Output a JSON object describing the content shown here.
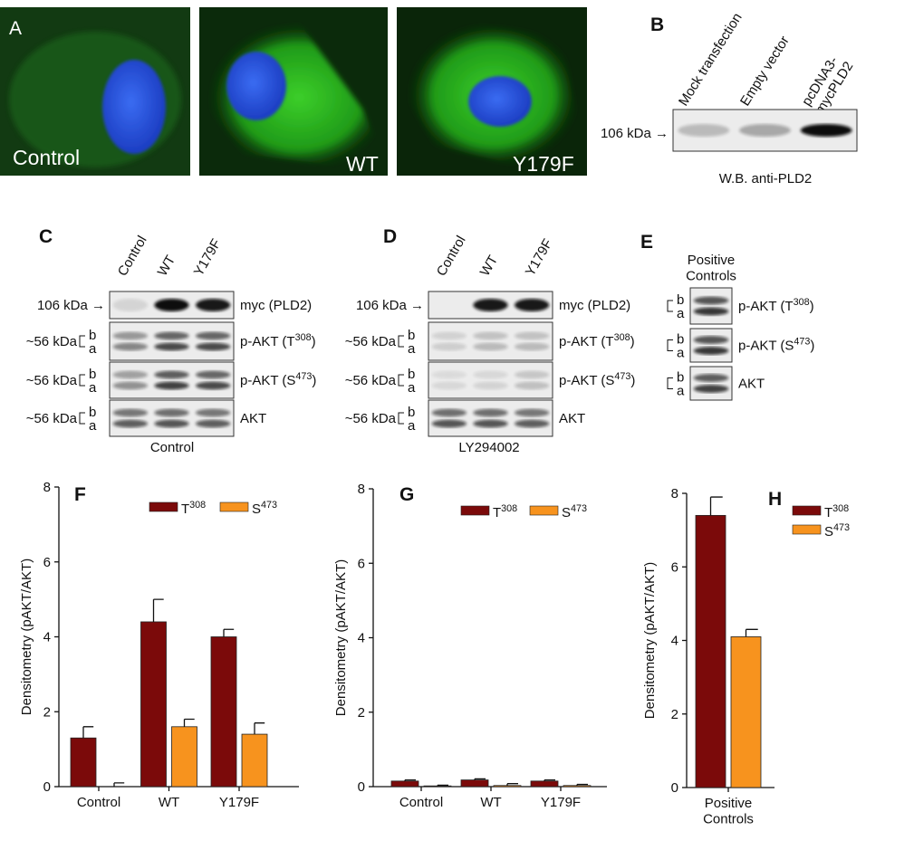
{
  "panel_a": {
    "letter": "A",
    "images": [
      "Control",
      "WT",
      "Y179F"
    ]
  },
  "panel_b": {
    "letter": "B",
    "lanes": [
      "Mock transfection",
      "Empty vector",
      "pcDNA3-\nmycPLD2"
    ],
    "marker": "106 kDa →",
    "caption": "W.B. anti-PLD2"
  },
  "panel_c": {
    "letter": "C",
    "lanes": [
      "Control",
      "WT",
      "Y179F"
    ],
    "condition": "Control",
    "rows": [
      {
        "marker": "106 kDa →",
        "label": "myc (PLD2)"
      },
      {
        "marker": "~56 kDa",
        "doublet": [
          "b",
          "a"
        ],
        "label": "p-AKT (T308)"
      },
      {
        "marker": "~56 kDa",
        "doublet": [
          "b",
          "a"
        ],
        "label": "p-AKT (S473)"
      },
      {
        "marker": "~56 kDa",
        "doublet": [
          "b",
          "a"
        ],
        "label": "AKT"
      }
    ]
  },
  "panel_d": {
    "letter": "D",
    "lanes": [
      "Control",
      "WT",
      "Y179F"
    ],
    "condition": "LY294002",
    "rows": [
      {
        "marker": "106 kDa →",
        "label": "myc (PLD2)"
      },
      {
        "marker": "~56 kDa",
        "doublet": [
          "b",
          "a"
        ],
        "label": "p-AKT (T308)"
      },
      {
        "marker": "~56 kDa",
        "doublet": [
          "b",
          "a"
        ],
        "label": "p-AKT (S473)"
      },
      {
        "marker": "~56 kDa",
        "doublet": [
          "b",
          "a"
        ],
        "label": "AKT"
      }
    ]
  },
  "panel_e": {
    "letter": "E",
    "title": "Positive\nControls",
    "rows": [
      {
        "doublet": [
          "b",
          "a"
        ],
        "label": "p-AKT (T308)"
      },
      {
        "doublet": [
          "b",
          "a"
        ],
        "label": "p-AKT (S473)"
      },
      {
        "doublet": [
          "b",
          "a"
        ],
        "label": "AKT"
      }
    ]
  },
  "chart_data": [
    {
      "type": "bar",
      "panel": "F",
      "ylabel": "Densitometry (pAKT/AKT)",
      "categories": [
        "Control",
        "WT",
        "Y179F"
      ],
      "ylim": [
        0,
        8
      ],
      "yticks": [
        0,
        2,
        4,
        6,
        8
      ],
      "legend": "top",
      "series": [
        {
          "name": "T308",
          "color": "#7b0a0a",
          "values": [
            1.3,
            4.4,
            4.0
          ],
          "errors": [
            0.3,
            0.6,
            0.2
          ]
        },
        {
          "name": "S473",
          "color": "#f7931e",
          "values": [
            0.0,
            1.6,
            1.4
          ],
          "errors": [
            0.1,
            0.2,
            0.3
          ]
        }
      ]
    },
    {
      "type": "bar",
      "panel": "G",
      "ylabel": "Densitometry (pAKT/AKT)",
      "categories": [
        "Control",
        "WT",
        "Y179F"
      ],
      "ylim": [
        0,
        8
      ],
      "yticks": [
        0,
        2,
        4,
        6,
        8
      ],
      "legend": "top",
      "series": [
        {
          "name": "T308",
          "color": "#7b0a0a",
          "values": [
            0.15,
            0.18,
            0.15
          ],
          "errors": [
            0.03,
            0.03,
            0.03
          ]
        },
        {
          "name": "S473",
          "color": "#f7931e",
          "values": [
            0.02,
            0.03,
            0.03
          ],
          "errors": [
            0.02,
            0.05,
            0.03
          ]
        }
      ]
    },
    {
      "type": "bar",
      "panel": "H",
      "ylabel": "Densitometry (pAKT/AKT)",
      "categories": [
        "Positive\nControls"
      ],
      "ylim": [
        0,
        8
      ],
      "yticks": [
        0,
        2,
        4,
        6,
        8
      ],
      "legend": "right",
      "series": [
        {
          "name": "T308",
          "color": "#7b0a0a",
          "values": [
            7.4
          ],
          "errors": [
            0.5
          ]
        },
        {
          "name": "S473",
          "color": "#f7931e",
          "values": [
            4.1
          ],
          "errors": [
            0.2
          ]
        }
      ]
    }
  ]
}
